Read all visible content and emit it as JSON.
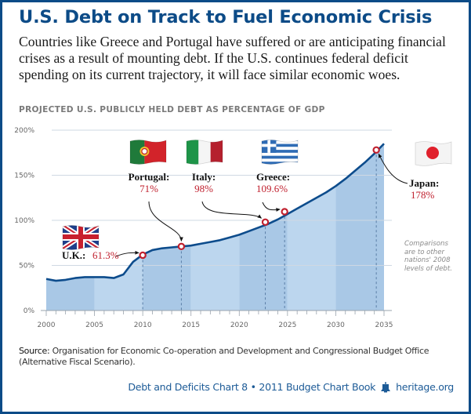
{
  "header": {
    "title": "U.S. Debt on Track to Fuel Economic Crisis",
    "subtitle": "Countries like Greece and Portugal have suffered or are anticipating financial crises as a result of mounting debt. If the U.S. continues federal deficit spending on its current trajectory, it will face similar economic woes."
  },
  "colors": {
    "brand": "#0c4b87",
    "line": "#0d4c8c",
    "area_dark": "#a9c8e6",
    "area_light": "#bcd6ee",
    "marker": "#c0202e",
    "value_text": "#c0202e"
  },
  "chart_data": {
    "type": "area",
    "title": "PROJECTED U.S. PUBLICLY HELD DEBT AS PERCENTAGE OF GDP",
    "xlabel": "",
    "ylabel": "",
    "x": [
      2000,
      2001,
      2002,
      2003,
      2004,
      2005,
      2006,
      2007,
      2008,
      2009,
      2010,
      2011,
      2012,
      2013,
      2014,
      2015,
      2016,
      2017,
      2018,
      2019,
      2020,
      2021,
      2022,
      2023,
      2024,
      2025,
      2026,
      2027,
      2028,
      2029,
      2030,
      2031,
      2032,
      2033,
      2034,
      2035
    ],
    "series": [
      {
        "name": "U.S. publicly held debt (% of GDP)",
        "values": [
          35,
          33,
          34,
          36,
          37,
          37,
          37,
          36,
          40,
          54,
          62,
          67,
          69,
          70,
          71,
          72,
          74,
          76,
          78,
          81,
          84,
          88,
          92,
          96,
          101,
          107,
          113,
          119,
          125,
          131,
          138,
          146,
          155,
          164,
          174,
          185
        ]
      }
    ],
    "x_ticks": [
      "2000",
      "2005",
      "2010",
      "2015",
      "2020",
      "2025",
      "2030",
      "2035"
    ],
    "y_ticks": [
      "0%",
      "50%",
      "100%",
      "150%",
      "200%"
    ],
    "xlim": [
      2000,
      2035
    ],
    "ylim": [
      0,
      200
    ],
    "grid": true,
    "annotations": [
      {
        "country": "U.K.",
        "label": "U.K.:",
        "value_text": "61.3%",
        "value": 61.3,
        "x": 2010,
        "flag": "uk-flag"
      },
      {
        "country": "Portugal",
        "label": "Portugal:",
        "value_text": "71%",
        "value": 71,
        "x": 2014,
        "flag": "portugal-flag"
      },
      {
        "country": "Italy",
        "label": "Italy:",
        "value_text": "98%",
        "value": 98,
        "x": 2022.7,
        "flag": "italy-flag"
      },
      {
        "country": "Greece",
        "label": "Greece:",
        "value_text": "109.6%",
        "value": 109.6,
        "x": 2024.7,
        "flag": "greece-flag"
      },
      {
        "country": "Japan",
        "label": "Japan:",
        "value_text": "178%",
        "value": 178,
        "x": 2034.2,
        "flag": "japan-flag"
      }
    ],
    "note": "Comparisons are to other nations' 2008 levels of debt."
  },
  "footer": {
    "source_label": "Source:",
    "source_text": " Organisation for Economic Co-operation and Development and Congressional Budget Office (Alternative Fiscal Scenario).",
    "credit": "Debt and Deficits Chart 8 • 2011 Budget Chart Book",
    "bell_icon": "liberty-bell-icon",
    "site": "heritage.org"
  }
}
